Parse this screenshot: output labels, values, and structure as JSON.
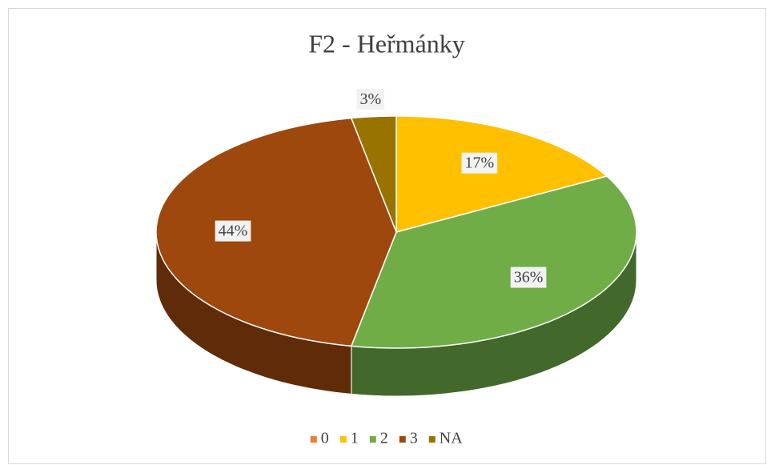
{
  "chart_data": {
    "type": "pie",
    "title": "F2 - Heřmánky",
    "categories": [
      "0",
      "1",
      "2",
      "3",
      "NA"
    ],
    "values": [
      0,
      17,
      36,
      44,
      3
    ],
    "value_labels": [
      null,
      "17%",
      "36%",
      "44%",
      "3%"
    ],
    "colors": [
      "#ED7D31",
      "#FFC000",
      "#70AD47",
      "#9E480E",
      "#997300"
    ],
    "legend": "bottom"
  }
}
